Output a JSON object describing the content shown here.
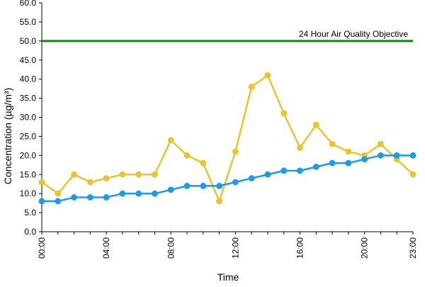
{
  "chart_data": {
    "type": "line",
    "title": "",
    "xlabel": "Time",
    "ylabel": "Concentration (µg/m³)",
    "ylim": [
      0,
      60
    ],
    "y_ticks": [
      "0.0",
      "5.0",
      "10.0",
      "15.0",
      "20.0",
      "25.0",
      "30.0",
      "35.0",
      "40.0",
      "45.0",
      "50.0",
      "55.0",
      "60.0"
    ],
    "x": [
      0,
      1,
      2,
      3,
      4,
      5,
      6,
      7,
      8,
      9,
      10,
      11,
      12,
      13,
      14,
      15,
      16,
      17,
      18,
      19,
      20,
      21,
      22,
      23
    ],
    "x_ticks": [
      {
        "x": 0,
        "label": "00:00"
      },
      {
        "x": 4,
        "label": "04:00"
      },
      {
        "x": 8,
        "label": "08:00"
      },
      {
        "x": 12,
        "label": "12:00"
      },
      {
        "x": 16,
        "label": "16:00"
      },
      {
        "x": 20,
        "label": "20:00"
      },
      {
        "x": 23,
        "label": "23:00"
      }
    ],
    "grid": false,
    "legend": "none",
    "series": [
      {
        "color": "#e8c332",
        "values": [
          13,
          10,
          15,
          13,
          14,
          15,
          15,
          15,
          24,
          20,
          18,
          8,
          21,
          38,
          41,
          31,
          22,
          28,
          23,
          21,
          20,
          23,
          19,
          15
        ]
      },
      {
        "color": "#1c9be6",
        "values": [
          8,
          8,
          9,
          9,
          9,
          10,
          10,
          10,
          11,
          12,
          12,
          12,
          13,
          14,
          15,
          16,
          16,
          17,
          18,
          18,
          19,
          20,
          20,
          20
        ]
      }
    ],
    "reference_line": {
      "value": 50,
      "label": "24 Hour Air Quality Objective",
      "color": "#1e7d1e"
    }
  }
}
